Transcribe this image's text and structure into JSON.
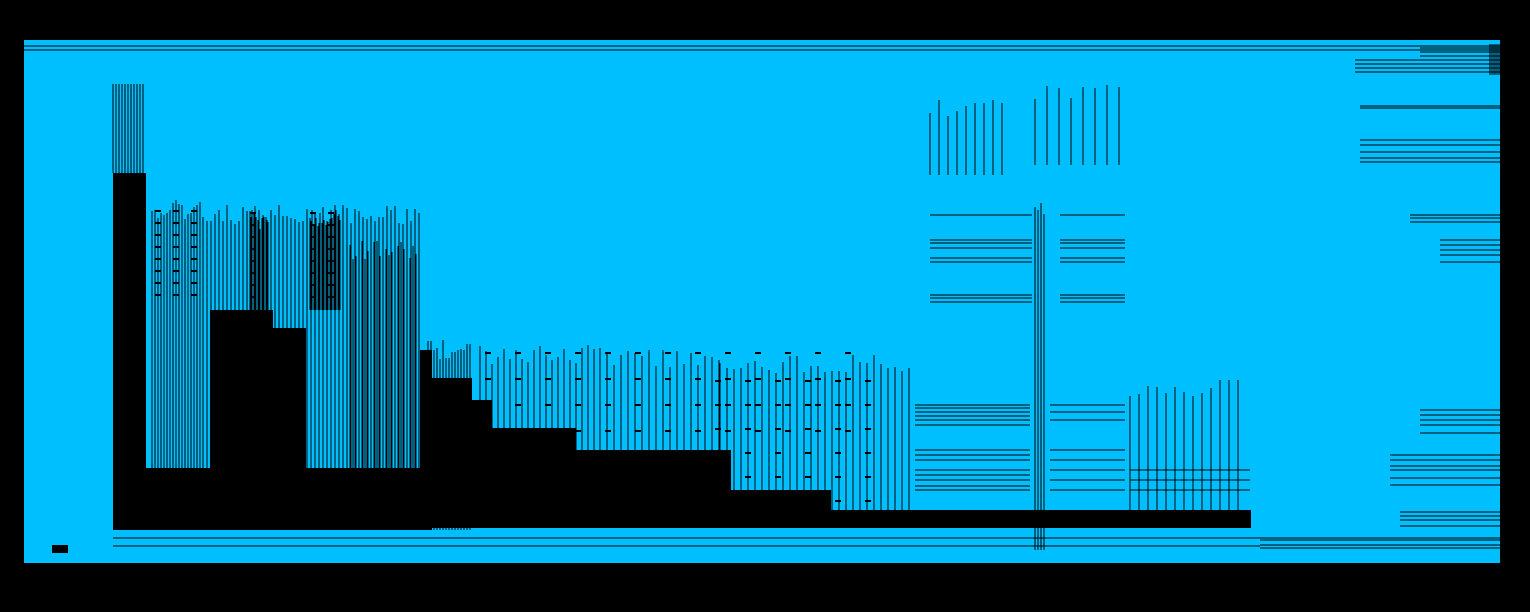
{
  "colors": {
    "background": "#000000",
    "fill": "#00bfff",
    "line": "#000000"
  }
}
